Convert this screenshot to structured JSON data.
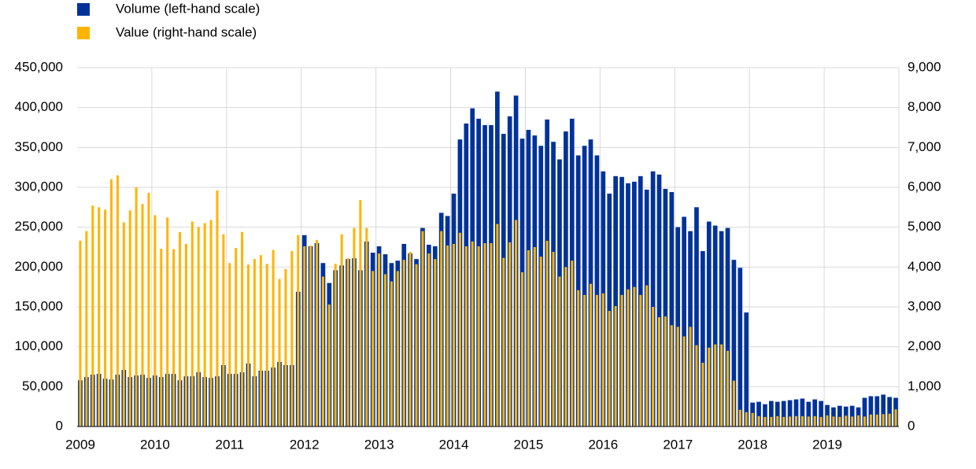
{
  "chart_data": {
    "type": "bar",
    "categories": [
      "2009",
      null,
      null,
      null,
      null,
      null,
      null,
      null,
      null,
      null,
      null,
      null,
      "2010",
      null,
      null,
      null,
      null,
      null,
      null,
      null,
      null,
      null,
      null,
      null,
      "2011",
      null,
      null,
      null,
      null,
      null,
      null,
      null,
      null,
      null,
      null,
      null,
      "2012",
      null,
      null,
      null,
      null,
      null,
      null,
      null,
      null,
      null,
      null,
      null,
      "2013",
      null,
      null,
      null,
      null,
      null,
      null,
      null,
      null,
      null,
      null,
      null,
      "2014",
      null,
      null,
      null,
      null,
      null,
      null,
      null,
      null,
      null,
      null,
      null,
      "2015",
      null,
      null,
      null,
      null,
      null,
      null,
      null,
      null,
      null,
      null,
      null,
      "2016",
      null,
      null,
      null,
      null,
      null,
      null,
      null,
      null,
      null,
      null,
      null,
      "2017",
      null,
      null,
      null,
      null,
      null,
      null,
      null,
      null,
      null,
      null,
      null,
      "2018",
      null,
      null,
      null,
      null,
      null,
      null,
      null,
      null,
      null,
      null,
      null,
      "2019",
      null,
      null,
      null,
      null,
      null,
      null,
      null,
      null,
      null,
      null,
      null
    ],
    "series": [
      {
        "name": "Volume (left-hand scale)",
        "color": "#003299",
        "values": [
          58000,
          62000,
          65000,
          66000,
          60000,
          59000,
          65000,
          71000,
          62000,
          64000,
          65000,
          61000,
          64000,
          62000,
          66000,
          66000,
          58000,
          63000,
          63000,
          68000,
          62000,
          61000,
          63000,
          77000,
          66000,
          66000,
          68000,
          79000,
          63000,
          70000,
          70000,
          74000,
          81000,
          77000,
          77000,
          169000,
          240000,
          226000,
          230000,
          205000,
          180000,
          196000,
          202000,
          210000,
          211000,
          196000,
          232000,
          218000,
          226000,
          216000,
          205000,
          208000,
          229000,
          217000,
          210000,
          249000,
          228000,
          226000,
          268000,
          264000,
          292000,
          360000,
          380000,
          399000,
          386000,
          378000,
          378000,
          420000,
          367000,
          389000,
          415000,
          361000,
          372000,
          365000,
          352000,
          385000,
          357000,
          335000,
          370000,
          386000,
          340000,
          352000,
          360000,
          340000,
          320000,
          292000,
          314000,
          313000,
          305000,
          307000,
          314000,
          297000,
          320000,
          316000,
          298000,
          294000,
          250000,
          263000,
          245000,
          275000,
          220000,
          257000,
          252000,
          245000,
          249000,
          209000,
          199000,
          143000,
          30000,
          31000,
          28000,
          32000,
          31000,
          32000,
          33000,
          34000,
          35000,
          31000,
          34000,
          32000,
          27000,
          24000,
          26000,
          25000,
          26000,
          24000,
          36000,
          38000,
          38000,
          40000,
          37000,
          36000
        ]
      },
      {
        "name": "Value (right-hand scale)",
        "color": "#ffb400",
        "axis": "y2",
        "values": [
          4660,
          4900,
          5540,
          5500,
          5440,
          6200,
          6300,
          5120,
          5420,
          6000,
          5580,
          5860,
          5300,
          4460,
          5240,
          4450,
          4880,
          4580,
          5140,
          5000,
          5100,
          5180,
          5920,
          4820,
          4100,
          4480,
          4880,
          4060,
          4200,
          4300,
          4080,
          4430,
          3700,
          3950,
          4400,
          4800,
          4520,
          4540,
          4680,
          3760,
          3060,
          4080,
          4820,
          4220,
          4980,
          5680,
          4980,
          3900,
          4340,
          3820,
          3640,
          3900,
          4180,
          4380,
          4070,
          4900,
          4340,
          4200,
          4900,
          4540,
          4580,
          4860,
          4520,
          4640,
          4520,
          4600,
          4600,
          5080,
          4230,
          4620,
          5180,
          3870,
          4420,
          4500,
          4260,
          4660,
          4380,
          3760,
          4000,
          4160,
          3420,
          3300,
          3580,
          3300,
          3340,
          2900,
          3020,
          3300,
          3440,
          3500,
          3300,
          3540,
          3000,
          2740,
          2760,
          2540,
          2500,
          2260,
          2500,
          2040,
          1600,
          1980,
          2060,
          2060,
          1900,
          1150,
          420,
          360,
          340,
          260,
          240,
          240,
          260,
          240,
          250,
          260,
          260,
          250,
          260,
          240,
          280,
          250,
          240,
          270,
          250,
          280,
          250,
          300,
          300,
          310,
          320,
          430
        ]
      }
    ],
    "ylim": [
      0,
      450000
    ],
    "yticks": [
      0,
      {
        "value": 50000,
        "label": "50,000"
      },
      {
        "value": 100000,
        "label": "100,000"
      },
      {
        "value": 150000,
        "label": "150,000"
      },
      {
        "value": 200000,
        "label": "200,000"
      },
      {
        "value": 250000,
        "label": "250,000"
      },
      {
        "value": 300000,
        "label": "300,000"
      },
      {
        "value": 350000,
        "label": "350,000"
      },
      {
        "value": 400000,
        "label": "400,000"
      },
      {
        "value": 450000,
        "label": "450,000"
      }
    ],
    "y2lim": [
      0,
      9000
    ],
    "y2ticks": [
      0,
      {
        "value": 1000,
        "label": "1,000"
      },
      {
        "value": 2000,
        "label": "2,000"
      },
      {
        "value": 3000,
        "label": "3,000"
      },
      {
        "value": 4000,
        "label": "4,000"
      },
      {
        "value": 5000,
        "label": "5,000"
      },
      {
        "value": 6000,
        "label": "6,000"
      },
      {
        "value": 7000,
        "label": "7,000"
      },
      {
        "value": 8000,
        "label": "8,000"
      },
      {
        "value": 9000,
        "label": "9,000"
      }
    ],
    "grid": true
  }
}
